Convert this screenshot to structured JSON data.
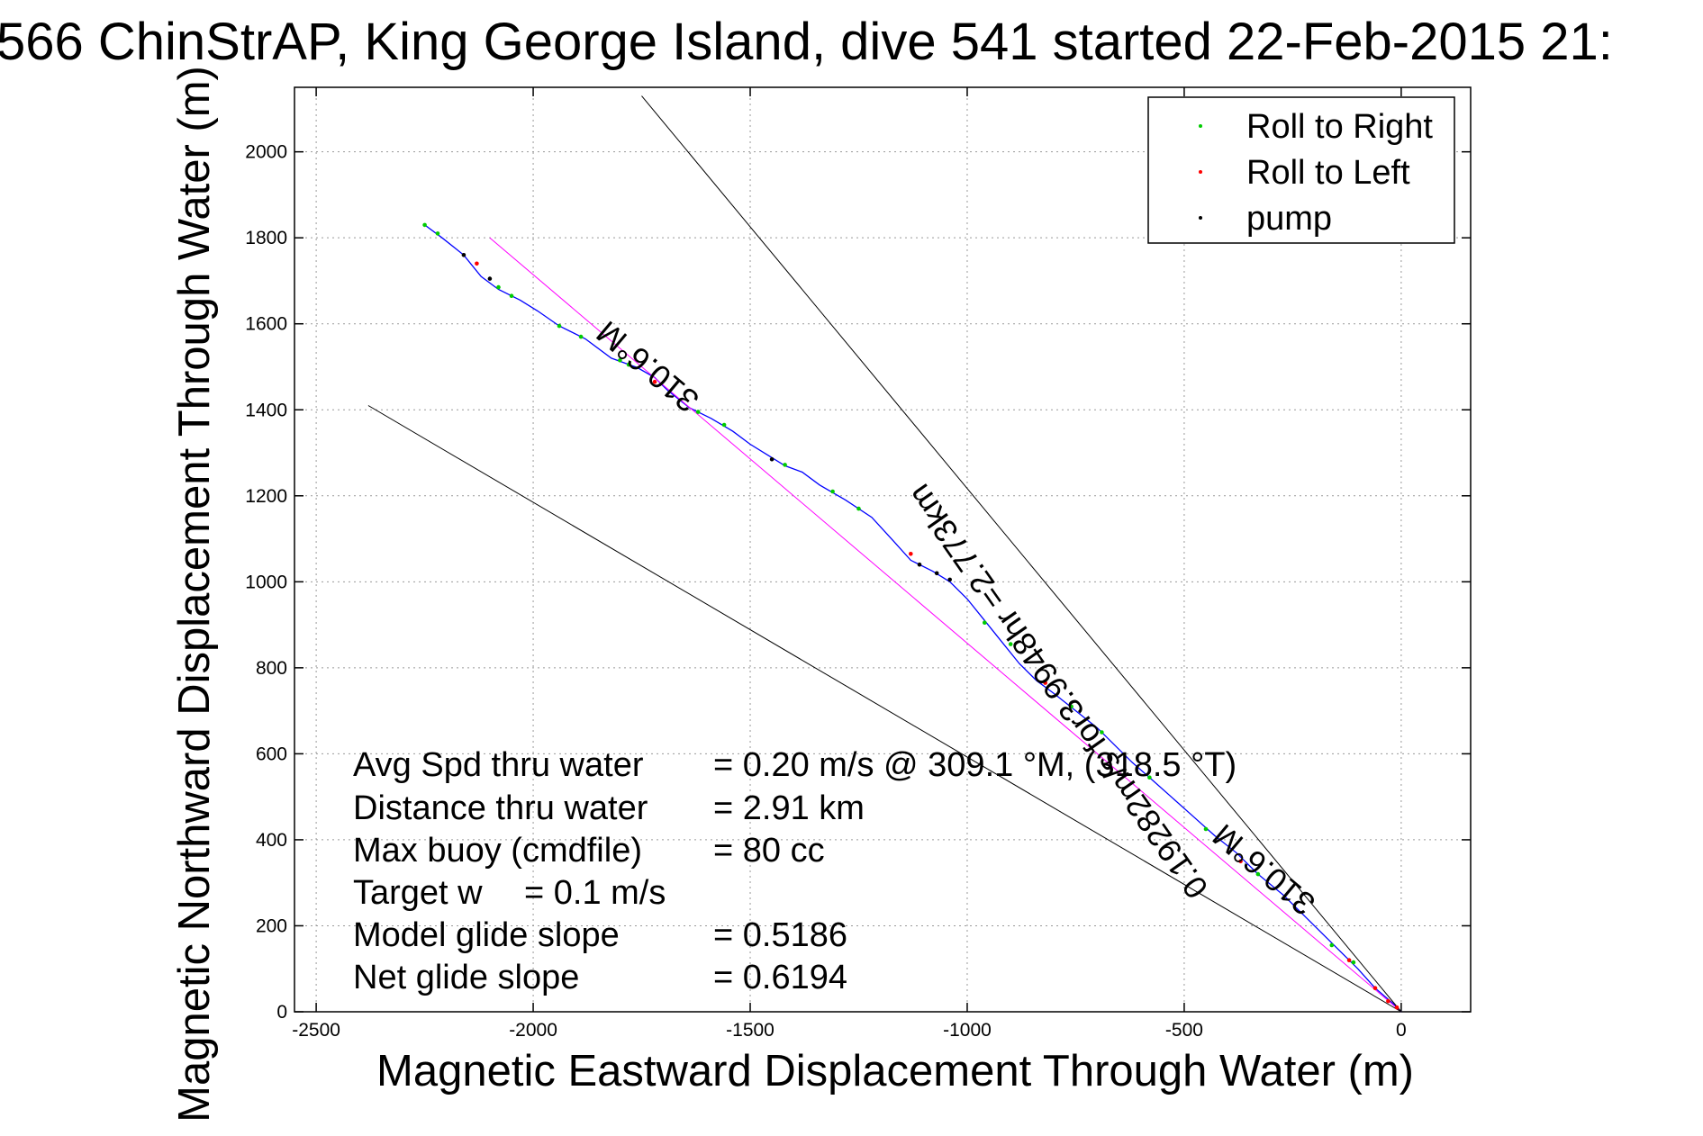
{
  "chart_data": {
    "type": "line",
    "title": "566 ChinStrAP, King George Island, dive 541 started 22-Feb-2015 21:",
    "xlabel": "Magnetic Eastward Displacement Through Water (m)",
    "ylabel": "Magnetic Northward Displacement Through Water (m)",
    "xlim": [
      -2550,
      160
    ],
    "ylim": [
      0,
      2150
    ],
    "xticks": [
      -2500,
      -2000,
      -1500,
      -1000,
      -500,
      0
    ],
    "yticks": [
      0,
      200,
      400,
      600,
      800,
      1000,
      1200,
      1400,
      1600,
      1800,
      2000
    ],
    "grid": true,
    "legend_position": "top-right",
    "legend": [
      {
        "label": "Roll to Right",
        "color": "#00cc00"
      },
      {
        "label": "Roll to Left",
        "color": "#ff0000"
      },
      {
        "label": "pump",
        "color": "#000000"
      }
    ],
    "series": [
      {
        "kind": "track",
        "color": "#0000ff",
        "points": [
          [
            -2250,
            1830
          ],
          [
            -2210,
            1800
          ],
          [
            -2160,
            1760
          ],
          [
            -2120,
            1710
          ],
          [
            -2080,
            1680
          ],
          [
            -2030,
            1655
          ],
          [
            -1990,
            1630
          ],
          [
            -1940,
            1595
          ],
          [
            -1880,
            1565
          ],
          [
            -1820,
            1520
          ],
          [
            -1760,
            1498
          ],
          [
            -1720,
            1475
          ],
          [
            -1690,
            1445
          ],
          [
            -1640,
            1405
          ],
          [
            -1590,
            1380
          ],
          [
            -1540,
            1350
          ],
          [
            -1500,
            1320
          ],
          [
            -1460,
            1295
          ],
          [
            -1420,
            1270
          ],
          [
            -1380,
            1255
          ],
          [
            -1340,
            1225
          ],
          [
            -1280,
            1190
          ],
          [
            -1220,
            1150
          ],
          [
            -1170,
            1095
          ],
          [
            -1130,
            1050
          ],
          [
            -1080,
            1025
          ],
          [
            -1040,
            1000
          ],
          [
            -1000,
            960
          ],
          [
            -960,
            910
          ],
          [
            -920,
            860
          ],
          [
            -880,
            810
          ],
          [
            -840,
            770
          ],
          [
            -800,
            740
          ],
          [
            -750,
            700
          ],
          [
            -700,
            660
          ],
          [
            -660,
            620
          ],
          [
            -620,
            580
          ],
          [
            -580,
            545
          ],
          [
            -530,
            500
          ],
          [
            -480,
            455
          ],
          [
            -430,
            410
          ],
          [
            -380,
            370
          ],
          [
            -330,
            320
          ],
          [
            -270,
            270
          ],
          [
            -210,
            210
          ],
          [
            -150,
            150
          ],
          [
            -100,
            100
          ],
          [
            -60,
            55
          ],
          [
            -20,
            20
          ],
          [
            0,
            0
          ]
        ]
      },
      {
        "kind": "reference",
        "color": "#ff00ff",
        "points": [
          [
            -2100,
            1800
          ],
          [
            0,
            0
          ]
        ]
      },
      {
        "kind": "reference",
        "color": "#000000",
        "points": [
          [
            -1750,
            2130
          ],
          [
            0,
            0
          ]
        ]
      },
      {
        "kind": "reference",
        "color": "#000000",
        "points": [
          [
            -2380,
            1410
          ],
          [
            0,
            0
          ]
        ]
      }
    ],
    "markers": {
      "right": [
        [
          -2250,
          1830
        ],
        [
          -2220,
          1810
        ],
        [
          -2080,
          1685
        ],
        [
          -2050,
          1665
        ],
        [
          -1940,
          1595
        ],
        [
          -1890,
          1570
        ],
        [
          -1800,
          1515
        ],
        [
          -1780,
          1505
        ],
        [
          -1620,
          1395
        ],
        [
          -1560,
          1365
        ],
        [
          -1420,
          1272
        ],
        [
          -1310,
          1210
        ],
        [
          -1250,
          1170
        ],
        [
          -960,
          905
        ],
        [
          -900,
          855
        ],
        [
          -760,
          710
        ],
        [
          -690,
          650
        ],
        [
          -580,
          545
        ],
        [
          -450,
          425
        ],
        [
          -330,
          320
        ],
        [
          -160,
          155
        ],
        [
          -110,
          115
        ]
      ],
      "left": [
        [
          -2130,
          1740
        ],
        [
          -1720,
          1465
        ],
        [
          -1130,
          1065
        ],
        [
          -820,
          765
        ],
        [
          -370,
          350
        ],
        [
          -120,
          120
        ],
        [
          -60,
          55
        ],
        [
          -30,
          25
        ],
        [
          -10,
          10
        ]
      ],
      "pump": [
        [
          -2160,
          1760
        ],
        [
          -2100,
          1705
        ],
        [
          -1450,
          1285
        ],
        [
          -1110,
          1040
        ],
        [
          -1070,
          1020
        ],
        [
          -1040,
          1005
        ]
      ]
    },
    "annotations": [
      {
        "text": "310.6°M",
        "x": -1720,
        "y": 1520,
        "rotation_deg": 40
      },
      {
        "text": "0.19282m/s for3.9948hr =2.773km",
        "x": -770,
        "y": 760,
        "rotation_deg": 55
      },
      {
        "text": "310.6°M",
        "x": -300,
        "y": 350,
        "rotation_deg": 40
      }
    ],
    "stats": [
      {
        "label": "Avg Spd thru water",
        "value": "=  0.20 m/s @ 309.1 °M, (318.5 °T)"
      },
      {
        "label": "Distance thru water",
        "value": "=  2.91 km"
      },
      {
        "label": "Max buoy (cmdfile)",
        "value": "= 80 cc"
      },
      {
        "label": "Target w",
        "value": "= 0.1 m/s"
      },
      {
        "label": "Model glide slope",
        "value": "= 0.5186"
      },
      {
        "label": "Net glide slope",
        "value": "= 0.6194"
      }
    ]
  }
}
